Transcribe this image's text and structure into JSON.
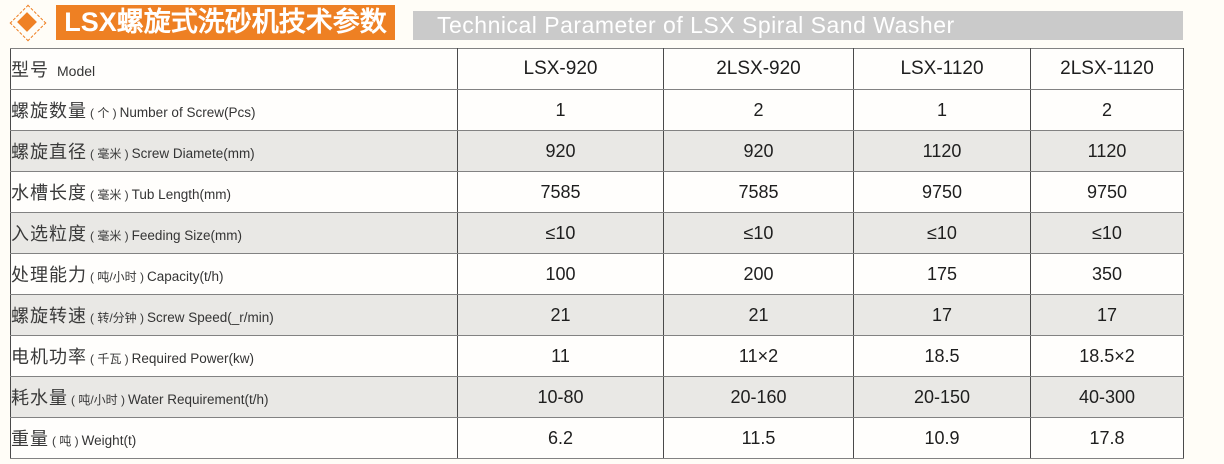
{
  "header": {
    "title_zh": "LSX螺旋式洗砂机技术参数",
    "title_en": "Technical Parameter of LSX Spiral Sand Washer",
    "accent_color": "#ee8023",
    "gray_color": "#cacaca"
  },
  "table": {
    "model_row": {
      "zh": "型号",
      "en": "Model"
    },
    "columns": [
      "LSX-920",
      "2LSX-920",
      "LSX-1120",
      "2LSX-1120"
    ],
    "rows": [
      {
        "zh": "螺旋数量",
        "paren": "( 个 )",
        "en": "Number of Screw(Pcs)",
        "values": [
          "1",
          "2",
          "1",
          "2"
        ],
        "shaded": false
      },
      {
        "zh": "螺旋直径",
        "paren": "( 毫米 )",
        "en": "Screw Diamete(mm)",
        "values": [
          "920",
          "920",
          "1120",
          "1120"
        ],
        "shaded": true
      },
      {
        "zh": "水槽长度",
        "paren": "( 毫米 )",
        "en": "Tub Length(mm)",
        "values": [
          "7585",
          "7585",
          "9750",
          "9750"
        ],
        "shaded": false
      },
      {
        "zh": "入选粒度",
        "paren": "( 毫米 )",
        "en": "Feeding Size(mm)",
        "values": [
          "≤10",
          "≤10",
          "≤10",
          "≤10"
        ],
        "shaded": true
      },
      {
        "zh": "处理能力",
        "paren": "( 吨/小时 )",
        "en": "Capacity(t/h)",
        "values": [
          "100",
          "200",
          "175",
          "350"
        ],
        "shaded": false
      },
      {
        "zh": "螺旋转速",
        "paren": "( 转/分钟 )",
        "en": "Screw Speed(_r/min)",
        "values": [
          "21",
          "21",
          "17",
          "17"
        ],
        "shaded": true
      },
      {
        "zh": "电机功率",
        "paren": "( 千瓦 )",
        "en": "Required Power(kw)",
        "values": [
          "11",
          "11×2",
          "18.5",
          "18.5×2"
        ],
        "shaded": false
      },
      {
        "zh": "耗水量",
        "paren": "( 吨/小时 )",
        "en": "Water Requirement(t/h)",
        "values": [
          "10-80",
          "20-160",
          "20-150",
          "40-300"
        ],
        "shaded": true
      },
      {
        "zh": "重量",
        "paren": "( 吨 )",
        "en": "Weight(t)",
        "values": [
          "6.2",
          "11.5",
          "10.9",
          "17.8"
        ],
        "shaded": false
      }
    ]
  }
}
